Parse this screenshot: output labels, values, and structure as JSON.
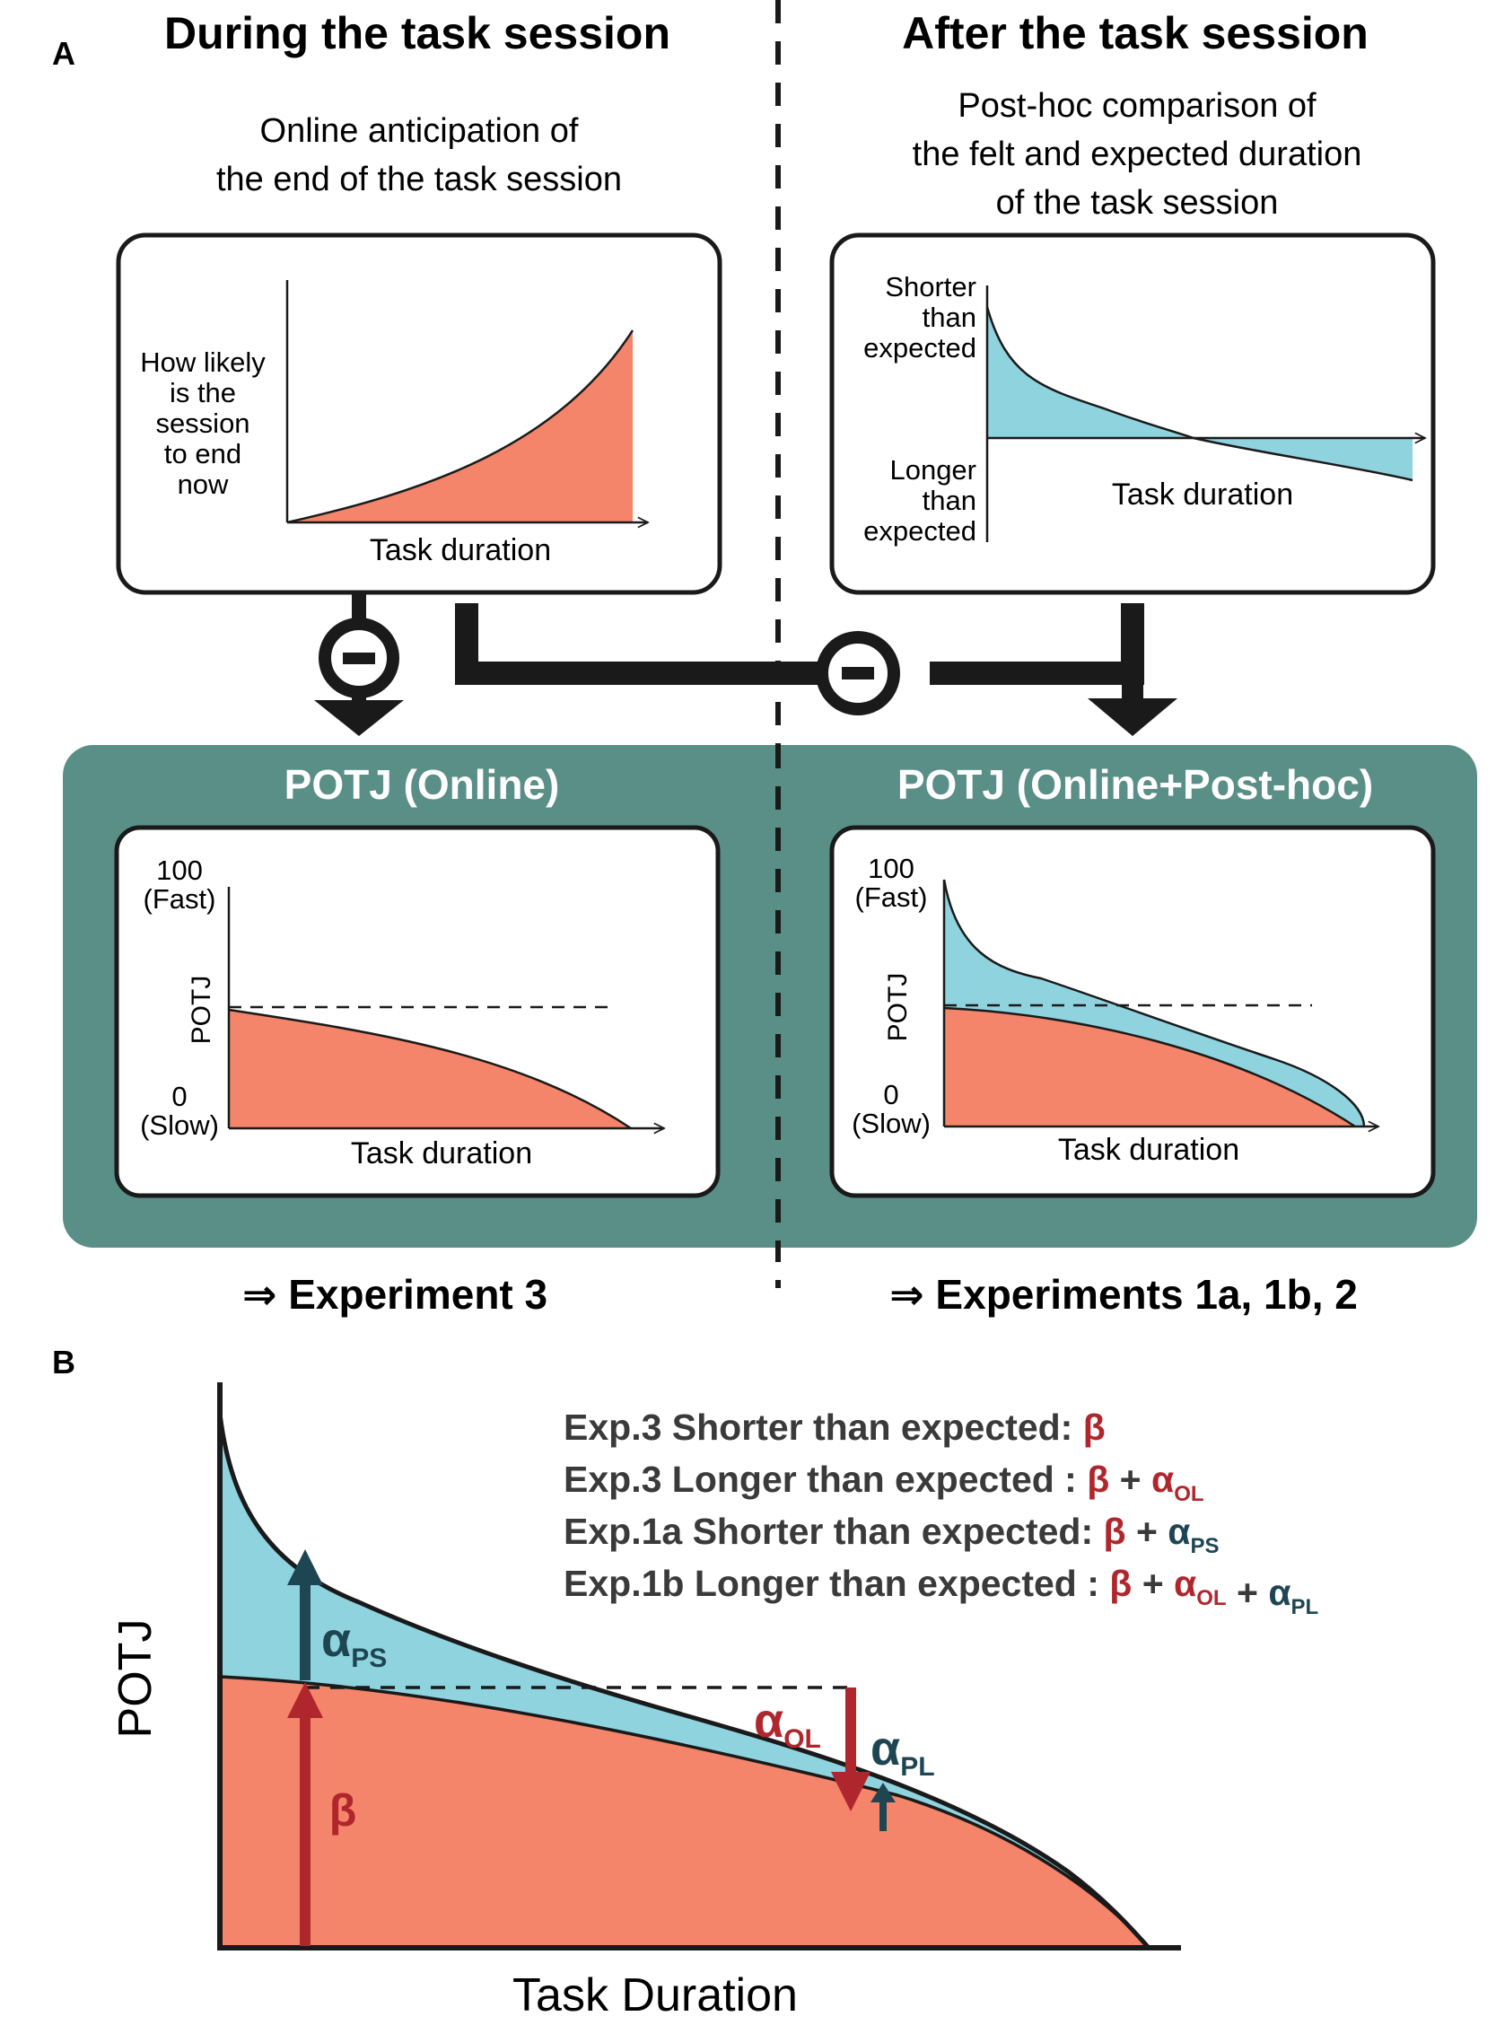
{
  "panel_a": {
    "label": "A",
    "left_heading": "During the task session",
    "right_heading": "After the task session",
    "left_subtitle": [
      "Online anticipation of",
      "the end of the task session"
    ],
    "right_subtitle": [
      "Post-hoc comparison of",
      "the felt and expected duration",
      "of the task session"
    ],
    "hazard_plot": {
      "ylabel": [
        "How likely",
        "is the",
        "session",
        "to end",
        "now"
      ],
      "xlabel": "Task duration"
    },
    "comparison_plot": {
      "top_label": [
        "Shorter",
        "than",
        "expected"
      ],
      "bottom_label": [
        "Longer",
        "than",
        "expected"
      ],
      "xlabel": "Task duration"
    },
    "minus_sign": "−",
    "bottom_left": {
      "title": "POTJ (Online)",
      "y_top": [
        "100",
        "(Fast)"
      ],
      "y_bottom": [
        "0",
        "(Slow)"
      ],
      "ylabel": "POTJ",
      "xlabel": "Task duration"
    },
    "bottom_right": {
      "title": "POTJ (Online+Post-hoc)",
      "y_top": [
        "100",
        "(Fast)"
      ],
      "y_bottom": [
        "0",
        "(Slow)"
      ],
      "ylabel": "POTJ",
      "xlabel": "Task duration"
    },
    "left_experiment": "⇒ Experiment 3",
    "right_experiment": "⇒ Experiments 1a, 1b, 2"
  },
  "panel_b": {
    "label": "B",
    "ylabel": "POTJ",
    "xlabel": "Task Duration",
    "legend": [
      {
        "prefix": "Exp.3 Shorter than expected:",
        "terms": [
          {
            "sym": "β",
            "sub": "",
            "color": "red"
          }
        ]
      },
      {
        "prefix": "Exp.3 Longer than expected :",
        "terms": [
          {
            "sym": "β",
            "sub": "",
            "color": "red"
          },
          {
            "sym": "α",
            "sub": "OL",
            "color": "red"
          }
        ]
      },
      {
        "prefix": "Exp.1a Shorter than expected:",
        "terms": [
          {
            "sym": "β",
            "sub": "",
            "color": "red"
          },
          {
            "sym": "α",
            "sub": "PS",
            "color": "dark"
          }
        ]
      },
      {
        "prefix": "Exp.1b Longer than expected :",
        "terms": [
          {
            "sym": "β",
            "sub": "",
            "color": "red"
          },
          {
            "sym": "α",
            "sub": "OL",
            "color": "red"
          },
          {
            "sym": "α",
            "sub": "PL",
            "color": "dark"
          }
        ]
      }
    ],
    "plus_sign": "+",
    "beta_label": "β",
    "alpha_ps": {
      "sym": "α",
      "sub": "PS"
    },
    "alpha_ol": {
      "sym": "α",
      "sub": "OL"
    },
    "alpha_pl": {
      "sym": "α",
      "sub": "PL"
    }
  },
  "colors": {
    "salmon": "#f4846a",
    "cyan": "#8fd3df",
    "teal": "#5a8f88",
    "red": "#b0262d",
    "dark": "#1e4652",
    "ink": "#1a1a1a"
  }
}
